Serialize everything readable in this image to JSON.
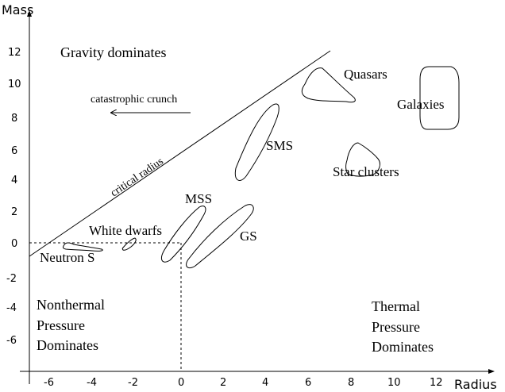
{
  "axes": {
    "y_label": "Mass",
    "x_label": "Radius",
    "x_ticks": [
      "-6",
      "-4",
      "-2",
      "0",
      "2",
      "4",
      "6",
      "8",
      "10",
      "12"
    ],
    "y_ticks": [
      "12",
      "10",
      "8",
      "6",
      "4",
      "2",
      "0",
      "-2",
      "-4",
      "-6"
    ]
  },
  "regions": {
    "gravity": "Gravity dominates",
    "crunch": "catastrophic crunch",
    "critical": "critical radius",
    "nonthermal": [
      "Nonthermal",
      "Pressure",
      "Dominates"
    ],
    "thermal": [
      "Thermal",
      "Pressure",
      "Dominates"
    ]
  },
  "objects": {
    "quasars": "Quasars",
    "galaxies": "Galaxies",
    "sms": "SMS",
    "star_clusters": "Star clusters",
    "mss": "MSS",
    "gs": "GS",
    "white_dwarfs": "White dwarfs",
    "neutron": "Neutron S"
  }
}
